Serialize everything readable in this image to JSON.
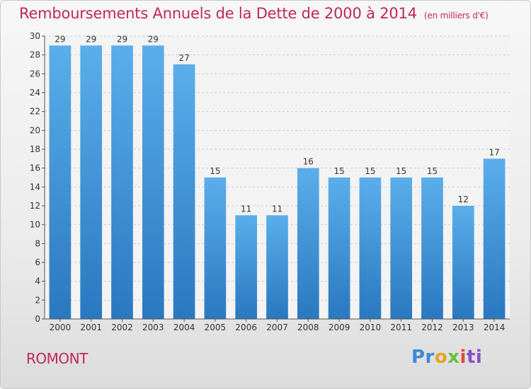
{
  "chart_data": {
    "type": "bar",
    "title": "Remboursements Annuels de la Dette de 2000 à 2014",
    "subtitle": "(en milliers d'€)",
    "categories": [
      "2000",
      "2001",
      "2002",
      "2003",
      "2004",
      "2005",
      "2006",
      "2007",
      "2008",
      "2009",
      "2010",
      "2011",
      "2012",
      "2013",
      "2014"
    ],
    "values": [
      29,
      29,
      29,
      29,
      27,
      15,
      11,
      11,
      16,
      15,
      15,
      15,
      15,
      12,
      17
    ],
    "ylim": [
      0,
      30
    ],
    "yticks": [
      0,
      2,
      4,
      6,
      8,
      10,
      12,
      14,
      16,
      18,
      20,
      22,
      24,
      26,
      28,
      30
    ],
    "grid": true,
    "bar_color": "#4a9ee2"
  },
  "footer": {
    "city": "ROMONT",
    "logo_parts": [
      "Pr",
      "o",
      "x",
      "i",
      "ti"
    ]
  }
}
